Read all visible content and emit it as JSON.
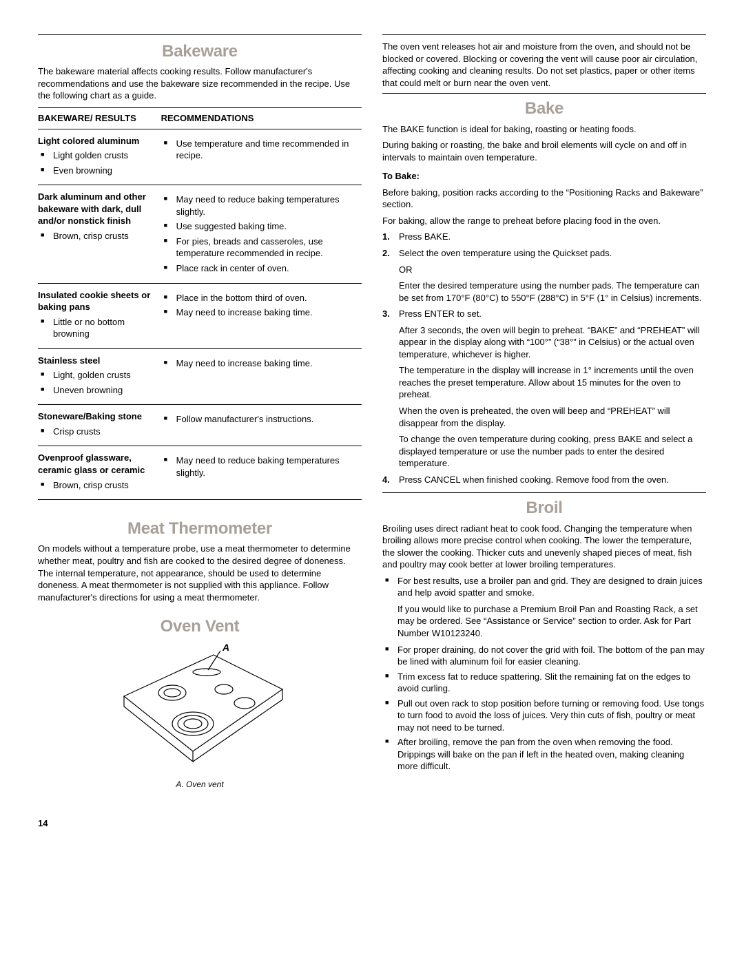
{
  "left": {
    "bakeware": {
      "heading": "Bakeware",
      "intro": "The bakeware material affects cooking results. Follow manufacturer's recommendations and use the bakeware size recommended in the recipe. Use the following chart as a guide.",
      "th1": "BAKEWARE/ RESULTS",
      "th2": "RECOMMENDATIONS",
      "rows": [
        {
          "title": "Light colored aluminum",
          "results": [
            "Light golden crusts",
            "Even browning"
          ],
          "recs": [
            "Use temperature and time recommended in recipe."
          ]
        },
        {
          "title": "Dark aluminum and other bakeware with dark, dull and/or nonstick finish",
          "results": [
            "Brown, crisp crusts"
          ],
          "recs": [
            "May need to reduce baking temperatures slightly.",
            "Use suggested baking time.",
            "For pies, breads and casseroles, use temperature recommended in recipe.",
            "Place rack in center of oven."
          ]
        },
        {
          "title": "Insulated cookie sheets or baking pans",
          "results": [
            "Little or no bottom browning"
          ],
          "recs": [
            "Place in the bottom third of oven.",
            "May need to increase baking time."
          ]
        },
        {
          "title": "Stainless steel",
          "results": [
            "Light, golden crusts",
            "Uneven browning"
          ],
          "recs": [
            "May need to increase baking time."
          ]
        },
        {
          "title": "Stoneware/Baking stone",
          "results": [
            "Crisp crusts"
          ],
          "recs": [
            "Follow manufacturer's instructions."
          ]
        },
        {
          "title": "Ovenproof glassware, ceramic glass or ceramic",
          "results": [
            "Brown, crisp crusts"
          ],
          "recs": [
            "May need to reduce baking temperatures slightly."
          ]
        }
      ]
    },
    "meat": {
      "heading": "Meat Thermometer",
      "body": "On models without a temperature probe, use a meat thermometer to determine whether meat, poultry and fish are cooked to the desired degree of doneness. The internal temperature, not appearance, should be used to determine doneness. A meat thermometer is not supplied with this appliance. Follow manufacturer's directions for using a meat thermometer."
    },
    "ovenvent": {
      "heading": "Oven Vent",
      "label_A": "A",
      "caption": "A. Oven vent"
    }
  },
  "right": {
    "vent_para": "The oven vent releases hot air and moisture from the oven, and should not be blocked or covered. Blocking or covering the vent will cause poor air circulation, affecting cooking and cleaning results. Do not set plastics, paper or other items that could melt or burn near the oven vent.",
    "bake": {
      "heading": "Bake",
      "p1": "The BAKE function is ideal for baking, roasting or heating foods.",
      "p2": "During baking or roasting, the bake and broil elements will cycle on and off in intervals to maintain oven temperature.",
      "to_bake": "To Bake:",
      "pre1": "Before baking, position racks according to the “Positioning Racks and Bakeware” section.",
      "pre2": "For baking, allow the range to preheat before placing food in the oven.",
      "steps": {
        "s1": "Press BAKE.",
        "s2": "Select the oven temperature using the Quickset pads.",
        "s2_or": "OR",
        "s2_b": "Enter the desired temperature using the number pads. The temperature can be set from 170°F (80°C) to 550°F (288°C) in 5°F (1° in Celsius) increments.",
        "s3": "Press ENTER to set.",
        "s3_a": "After 3 seconds, the oven will begin to preheat. “BAKE” and “PREHEAT” will appear in the display along with “100°” (“38°” in Celsius) or the actual oven temperature, whichever is higher.",
        "s3_b": "The temperature in the display will increase in 1° increments until the oven reaches the preset temperature. Allow about 15 minutes for the oven to preheat.",
        "s3_c": "When the oven is preheated, the oven will beep and “PREHEAT” will disappear from the display.",
        "s3_d": "To change the oven temperature during cooking, press BAKE and select a displayed temperature or use the number pads to enter the desired temperature.",
        "s4": "Press CANCEL when finished cooking. Remove food from the oven."
      }
    },
    "broil": {
      "heading": "Broil",
      "intro": "Broiling uses direct radiant heat to cook food. Changing the temperature when broiling allows more precise control when cooking. The lower the temperature, the slower the cooking. Thicker cuts and unevenly shaped pieces of meat, fish and poultry may cook better at lower broiling temperatures.",
      "b1a": "For best results, use a broiler pan and grid. They are designed to drain juices and help avoid spatter and smoke.",
      "b1b": "If you would like to purchase a Premium Broil Pan and Roasting Rack, a set may be ordered. See “Assistance or Service” section to order. Ask for Part Number W10123240.",
      "b2": "For proper draining, do not cover the grid with foil. The bottom of the pan may be lined with aluminum foil for easier cleaning.",
      "b3": "Trim excess fat to reduce spattering. Slit the remaining fat on the edges to avoid curling.",
      "b4": "Pull out oven rack to stop position before turning or removing food. Use tongs to turn food to avoid the loss of juices. Very thin cuts of fish, poultry or meat may not need to be turned.",
      "b5": "After broiling, remove the pan from the oven when removing the food. Drippings will bake on the pan if left in the heated oven, making cleaning more difficult."
    }
  },
  "page_number": "14"
}
